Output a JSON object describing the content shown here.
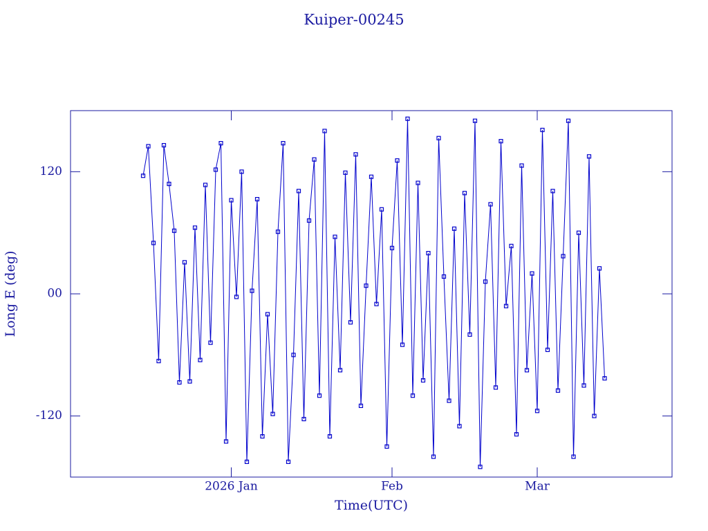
{
  "chart_data": {
    "type": "line",
    "title": "Kuiper-00245",
    "x_label": "Time(UTC)",
    "y_label": "Long E (deg)",
    "x": [
      -17,
      -16,
      -15,
      -14,
      -13,
      -12,
      -11,
      -10,
      -9,
      -8,
      -7,
      -6,
      -5,
      -4,
      -3,
      -2,
      -1,
      0,
      1,
      2,
      3,
      4,
      5,
      6,
      7,
      8,
      9,
      10,
      11,
      12,
      13,
      14,
      15,
      16,
      17,
      18,
      19,
      20,
      21,
      22,
      23,
      24,
      25,
      26,
      27,
      28,
      29,
      30,
      31,
      32,
      33,
      34,
      35,
      36,
      37,
      38,
      39,
      40,
      41,
      42,
      43,
      44,
      45,
      46,
      47,
      48,
      49,
      50,
      51,
      52,
      53,
      54,
      55,
      56,
      57,
      58,
      59,
      60,
      61,
      62,
      63,
      64,
      65,
      66,
      67,
      68,
      69,
      70,
      71,
      72
    ],
    "values": [
      116,
      145,
      50,
      -66,
      146,
      108,
      62,
      -87,
      31,
      -86,
      65,
      -65,
      107,
      -48,
      122,
      148,
      -145,
      92,
      -3,
      120,
      -165,
      3,
      93,
      -140,
      -20,
      -118,
      61,
      148,
      -165,
      -60,
      101,
      -123,
      72,
      132,
      -100,
      160,
      -140,
      56,
      -75,
      119,
      -28,
      137,
      -110,
      8,
      115,
      -10,
      83,
      -150,
      45,
      131,
      -50,
      172,
      -100,
      109,
      -85,
      40,
      -160,
      153,
      17,
      -105,
      64,
      -130,
      99,
      -40,
      170,
      -170,
      12,
      88,
      -92,
      150,
      -12,
      47,
      -138,
      126,
      -75,
      20,
      -115,
      161,
      -55,
      101,
      -95,
      37,
      170,
      -160,
      60,
      -90,
      135,
      -120,
      25,
      -83
    ],
    "color": "#0000cc",
    "xlim": [
      -31,
      85
    ],
    "xticks": [
      {
        "value": 0,
        "label": "2026 Jan"
      },
      {
        "value": 31,
        "label": "Feb"
      },
      {
        "value": 59,
        "label": "Mar"
      }
    ],
    "ylim": [
      -180,
      180
    ],
    "yticks": [
      -120,
      {
        "value": 0,
        "label": "00"
      },
      120
    ]
  }
}
